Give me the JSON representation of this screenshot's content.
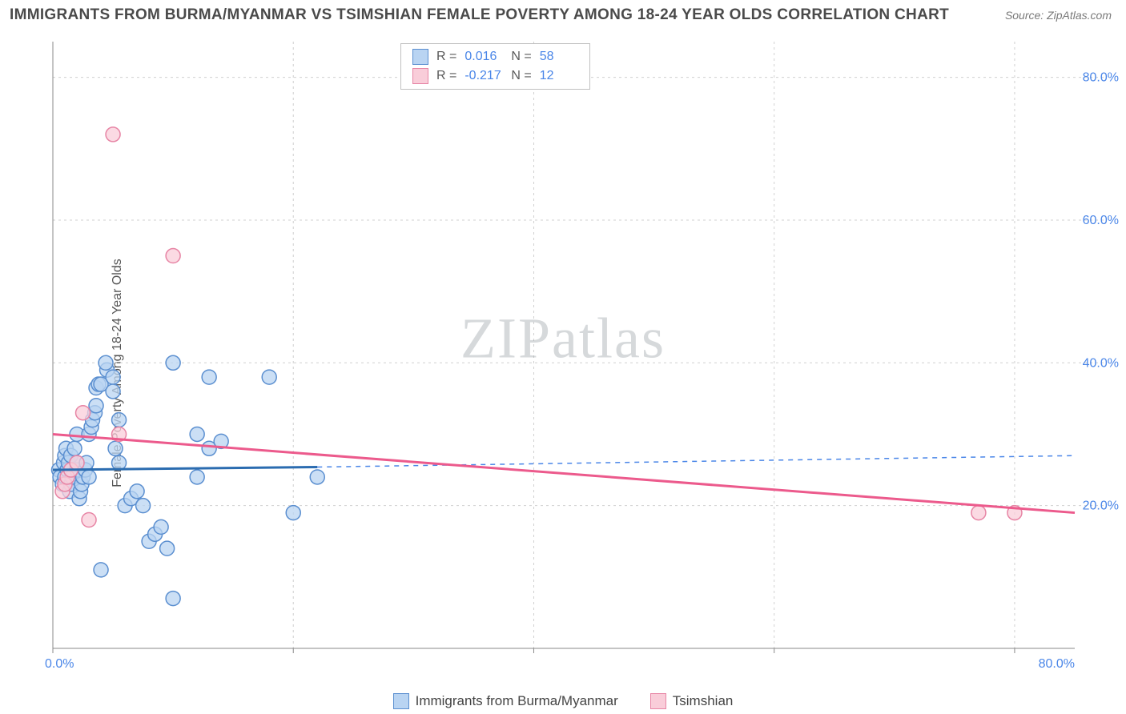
{
  "title": "IMMIGRANTS FROM BURMA/MYANMAR VS TSIMSHIAN FEMALE POVERTY AMONG 18-24 YEAR OLDS CORRELATION CHART",
  "source": "Source: ZipAtlas.com",
  "y_axis_label": "Female Poverty Among 18-24 Year Olds",
  "watermark": "ZIPatlas",
  "chart": {
    "type": "scatter",
    "xlim": [
      0,
      85
    ],
    "ylim": [
      0,
      85
    ],
    "x_tick_labels": {
      "min": "0.0%",
      "max": "80.0%"
    },
    "y_ticks": [
      20,
      40,
      60,
      80
    ],
    "y_tick_labels": [
      "20.0%",
      "40.0%",
      "60.0%",
      "80.0%"
    ],
    "background_color": "#ffffff",
    "grid_color": "#d0d0d0",
    "axis_color": "#888888",
    "marker_radius": 9,
    "marker_stroke_width": 1.5,
    "series": [
      {
        "name": "Immigrants from Burma/Myanmar",
        "fill": "#b9d4f2",
        "stroke": "#5b8fd0",
        "R": "0.016",
        "N": "58",
        "trend": {
          "solid_from": [
            0,
            25
          ],
          "solid_to": [
            22,
            25.4
          ],
          "dash_to": [
            85,
            27
          ]
        },
        "points": [
          [
            0.5,
            25
          ],
          [
            0.6,
            24
          ],
          [
            0.8,
            23
          ],
          [
            0.9,
            26
          ],
          [
            1.0,
            27
          ],
          [
            1.1,
            28
          ],
          [
            1.0,
            24
          ],
          [
            1.2,
            25
          ],
          [
            1.3,
            26
          ],
          [
            1.4,
            22
          ],
          [
            1.5,
            23
          ],
          [
            1.6,
            24
          ],
          [
            1.5,
            27
          ],
          [
            1.8,
            28
          ],
          [
            2.0,
            25
          ],
          [
            2.0,
            26
          ],
          [
            2.0,
            30
          ],
          [
            2.2,
            21
          ],
          [
            2.3,
            22
          ],
          [
            2.4,
            23
          ],
          [
            2.5,
            24
          ],
          [
            2.7,
            25
          ],
          [
            2.8,
            26
          ],
          [
            3.0,
            24
          ],
          [
            3.0,
            30
          ],
          [
            3.2,
            31
          ],
          [
            3.3,
            32
          ],
          [
            3.5,
            33
          ],
          [
            3.6,
            34
          ],
          [
            3.6,
            36.5
          ],
          [
            3.8,
            37
          ],
          [
            4.0,
            37
          ],
          [
            4.5,
            39
          ],
          [
            4.4,
            40
          ],
          [
            5.0,
            38
          ],
          [
            5.0,
            36
          ],
          [
            5.2,
            28
          ],
          [
            5.5,
            26
          ],
          [
            5.5,
            32
          ],
          [
            6.0,
            20
          ],
          [
            6.5,
            21
          ],
          [
            7.0,
            22
          ],
          [
            7.5,
            20
          ],
          [
            8.0,
            15
          ],
          [
            8.5,
            16
          ],
          [
            9.0,
            17
          ],
          [
            9.5,
            14
          ],
          [
            10.0,
            40
          ],
          [
            12,
            30
          ],
          [
            12,
            24
          ],
          [
            13,
            28
          ],
          [
            13,
            38
          ],
          [
            14,
            29
          ],
          [
            18,
            38
          ],
          [
            20,
            19
          ],
          [
            22,
            24
          ],
          [
            4,
            11
          ],
          [
            10,
            7
          ]
        ]
      },
      {
        "name": "Tsimshian",
        "fill": "#f9cdd9",
        "stroke": "#e785a5",
        "R": "-0.217",
        "N": "12",
        "trend": {
          "solid_from": [
            0,
            30
          ],
          "dash_to": [
            85,
            19
          ]
        },
        "points": [
          [
            0.8,
            22
          ],
          [
            1.0,
            23
          ],
          [
            1.2,
            24
          ],
          [
            1.5,
            25
          ],
          [
            2.0,
            26
          ],
          [
            2.5,
            33
          ],
          [
            3.0,
            18
          ],
          [
            5,
            72
          ],
          [
            5.5,
            30
          ],
          [
            10,
            55
          ],
          [
            77,
            19
          ],
          [
            80,
            19
          ]
        ]
      }
    ]
  },
  "legend_stats": [
    {
      "swatch_fill": "#b9d4f2",
      "swatch_stroke": "#5b8fd0",
      "R": "0.016",
      "N": "58"
    },
    {
      "swatch_fill": "#f9cdd9",
      "swatch_stroke": "#e785a5",
      "R": "-0.217",
      "N": "12"
    }
  ],
  "x_legend": [
    {
      "swatch_fill": "#b9d4f2",
      "swatch_stroke": "#5b8fd0",
      "label": "Immigrants from Burma/Myanmar"
    },
    {
      "swatch_fill": "#f9cdd9",
      "swatch_stroke": "#e785a5",
      "label": "Tsimshian"
    }
  ]
}
